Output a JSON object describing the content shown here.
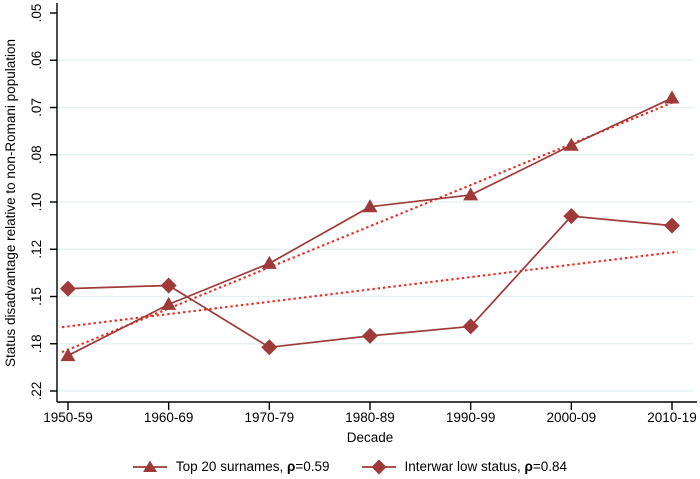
{
  "colors": {
    "series": "#9e3a38",
    "trend": "#ec2c24",
    "grid": "#e1f0f0",
    "axis": "#000000",
    "text": "#000000"
  },
  "chart_data": {
    "type": "line",
    "title": "",
    "xlabel": "Decade",
    "ylabel": "Status disadvantage relative to non-Romani population",
    "x_categories": [
      "1950-59",
      "1960-69",
      "1970-79",
      "1980-89",
      "1990-99",
      "2000-09",
      "2010-19"
    ],
    "y_axis": {
      "tick_labels": [
        ".05",
        ".06",
        ".07",
        ".08",
        ".10",
        ".12",
        ".15",
        ".18",
        ".22"
      ],
      "tick_values": [
        0.05,
        0.06,
        0.07,
        0.08,
        0.1,
        0.12,
        0.15,
        0.18,
        0.22
      ],
      "orientation": "inverted",
      "note": "disadvantage increases downward; gridlines at every tick except .05"
    },
    "series": [
      {
        "name": "Top 20 surnames, ρ=0.59",
        "marker": "triangle",
        "values": [
          0.19,
          0.155,
          0.129,
          0.102,
          0.097,
          0.078,
          0.068
        ]
      },
      {
        "name": "Interwar low status, ρ=0.84",
        "marker": "diamond",
        "values": [
          0.145,
          0.143,
          0.183,
          0.175,
          0.169,
          0.106,
          0.11
        ]
      }
    ],
    "trend_lines": [
      {
        "for_series": "Top 20 surnames, ρ=0.59",
        "style": "dotted",
        "start_value": 0.185,
        "end_value": 0.069
      },
      {
        "for_series": "Interwar low status, ρ=0.84",
        "style": "dotted",
        "start_value": 0.169,
        "end_value": 0.122
      }
    ],
    "legend_position": "bottom",
    "grid": true
  },
  "legend": {
    "items": [
      {
        "marker": "triangle",
        "label_prefix": "Top 20 surnames, ",
        "rho_symbol": "ρ",
        "rho_value": "=0.59"
      },
      {
        "marker": "diamond",
        "label_prefix": "Interwar low status, ",
        "rho_symbol": "ρ",
        "rho_value": "=0.84"
      }
    ]
  }
}
